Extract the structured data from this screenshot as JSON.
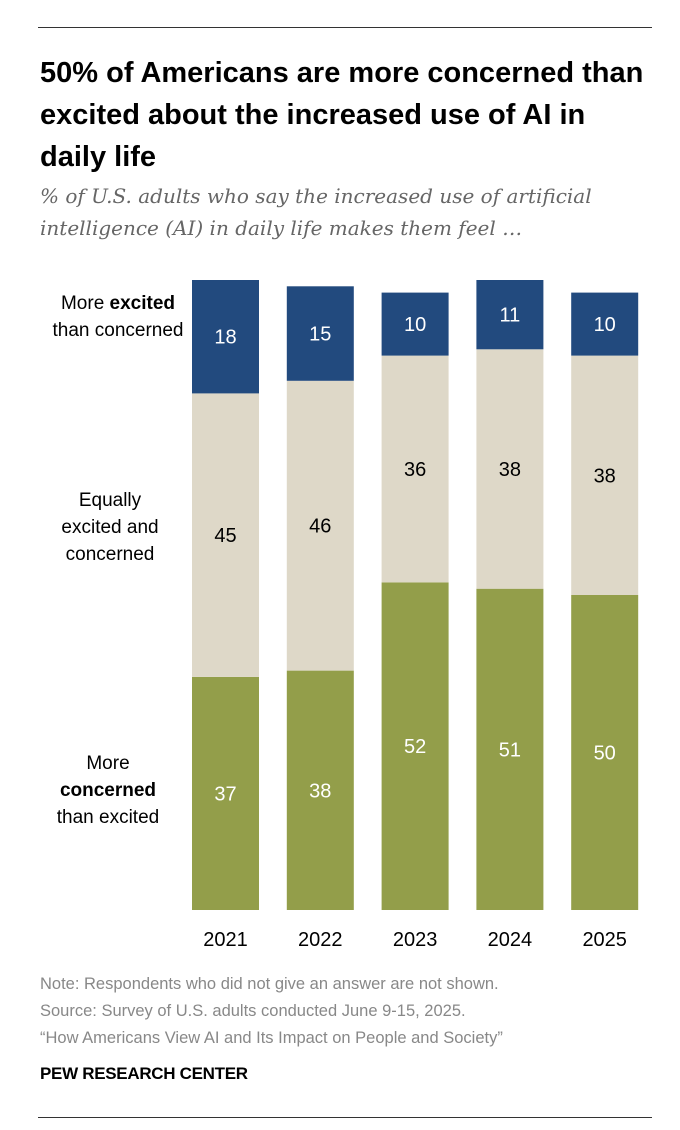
{
  "title": "50% of Americans are more concerned than excited about the increased use of AI in daily life",
  "subtitle": "% of U.S. adults who say the increased use of artificial intelligence (AI) in daily life makes them feel …",
  "legend": {
    "excited": {
      "pre": "More ",
      "bold": "excited",
      "post": "than concerned"
    },
    "equal": {
      "text": "Equally excited and concerned"
    },
    "concerned": {
      "pre": "More",
      "bold": "concerned",
      "post": "than excited"
    }
  },
  "notes": {
    "note": "Note: Respondents who did not give an answer are not shown.",
    "source": "Source: Survey of U.S. adults conducted June 9-15, 2025.",
    "report": "“How Americans View AI and Its Impact on People and Society”"
  },
  "brand": "PEW RESEARCH CENTER",
  "chart_data": {
    "type": "bar",
    "stacked": true,
    "categories": [
      "2021",
      "2022",
      "2023",
      "2024",
      "2025"
    ],
    "series": [
      {
        "name": "More concerned than excited",
        "color": "#939e4a",
        "values": [
          37,
          38,
          52,
          51,
          50
        ]
      },
      {
        "name": "Equally excited and concerned",
        "color": "#ded8c8",
        "values": [
          45,
          46,
          36,
          38,
          38
        ]
      },
      {
        "name": "More excited than concerned",
        "color": "#224a7e",
        "values": [
          18,
          15,
          10,
          11,
          10
        ]
      }
    ],
    "ylim": [
      0,
      100
    ],
    "grid": false,
    "legend_placement": "left"
  }
}
